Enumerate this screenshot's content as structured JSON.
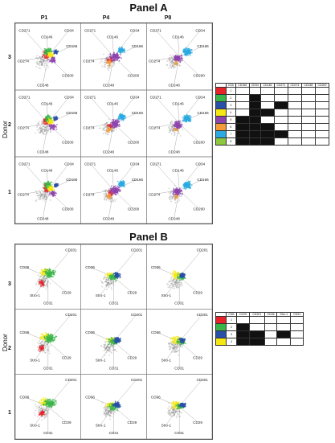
{
  "panel_a": {
    "title": "Panel A",
    "columns": [
      "P1",
      "P4",
      "P8"
    ],
    "rows": [
      "3",
      "2",
      "1"
    ],
    "donor_label": "Donor",
    "markers": [
      "CD271",
      "CD146",
      "CD34",
      "CD166",
      "CD200",
      "CD248",
      "CD274"
    ],
    "key": {
      "header_code": "CSA",
      "headers": [
        "CD166",
        "CD34",
        "CD146",
        "CD271",
        "CD274",
        "CD248",
        "CD200"
      ],
      "rows": [
        {
          "label": "1",
          "color": "#e8232a",
          "filled": [
            false,
            false,
            false,
            false,
            false,
            false,
            false
          ]
        },
        {
          "label": "2",
          "color": "#3ab54a",
          "filled": [
            false,
            true,
            false,
            false,
            false,
            false,
            false
          ]
        },
        {
          "label": "3",
          "color": "#2a4fa8",
          "filled": [
            false,
            true,
            false,
            true,
            false,
            false,
            false
          ]
        },
        {
          "label": "4",
          "color": "#f5e812",
          "filled": [
            false,
            true,
            true,
            false,
            false,
            false,
            false
          ]
        },
        {
          "label": "5",
          "color": "#8e44ad",
          "filled": [
            true,
            true,
            false,
            false,
            false,
            false,
            false
          ]
        },
        {
          "label": "6",
          "color": "#f39c39",
          "filled": [
            true,
            true,
            true,
            false,
            false,
            false,
            false
          ]
        },
        {
          "label": "7",
          "color": "#29abe2",
          "filled": [
            true,
            true,
            true,
            true,
            false,
            false,
            false
          ]
        },
        {
          "label": "8",
          "color": "#8dc63f",
          "filled": [
            true,
            true,
            true,
            false,
            false,
            false,
            false
          ]
        }
      ]
    }
  },
  "panel_b": {
    "title": "Panel B",
    "rows": [
      "3",
      "2",
      "1"
    ],
    "donor_label": "Donor",
    "markers": [
      "CD201",
      "CD36",
      "CD29",
      "Stro-1",
      "CD31"
    ],
    "key": {
      "header_code": "CSB",
      "headers": [
        "CD29",
        "CD201",
        "CD36",
        "Stro-1",
        "CD31"
      ],
      "rows": [
        {
          "label": "1",
          "color": "#e8232a",
          "filled": [
            false,
            false,
            false,
            false,
            false
          ]
        },
        {
          "label": "2",
          "color": "#3ab54a",
          "filled": [
            true,
            false,
            false,
            false,
            false
          ]
        },
        {
          "label": "3",
          "color": "#2a4fa8",
          "filled": [
            true,
            true,
            false,
            true,
            false
          ]
        },
        {
          "label": "4",
          "color": "#f5e812",
          "filled": [
            true,
            true,
            false,
            false,
            false
          ]
        }
      ]
    }
  }
}
